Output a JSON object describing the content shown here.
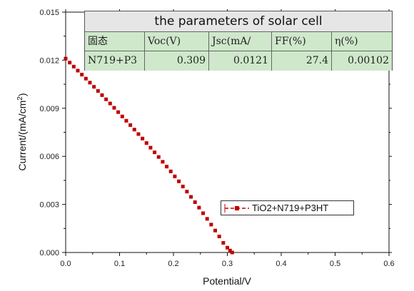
{
  "chart_data": {
    "type": "scatter",
    "xlabel": "Potential/V",
    "ylabel_parts": {
      "base": "Current/(mA/cm",
      "sup": "2",
      "end": ")"
    },
    "xlim": [
      0.0,
      0.6
    ],
    "ylim": [
      0.0,
      0.015
    ],
    "xticks": [
      "0.0",
      "0.1",
      "0.2",
      "0.3",
      "0.4",
      "0.5",
      "0.6"
    ],
    "yticks": [
      "0.000",
      "0.003",
      "0.006",
      "0.009",
      "0.012",
      "0.015"
    ],
    "series": [
      {
        "name": "TiO2+N719+P3HT",
        "color": "#c00000",
        "x": [
          0.0,
          0.0075,
          0.015,
          0.0225,
          0.03,
          0.0375,
          0.045,
          0.0525,
          0.06,
          0.0675,
          0.075,
          0.0825,
          0.09,
          0.0975,
          0.105,
          0.1125,
          0.12,
          0.1275,
          0.135,
          0.1425,
          0.15,
          0.1575,
          0.165,
          0.1725,
          0.18,
          0.1875,
          0.195,
          0.2025,
          0.21,
          0.2175,
          0.225,
          0.2325,
          0.24,
          0.2475,
          0.255,
          0.2625,
          0.27,
          0.2775,
          0.285,
          0.2925,
          0.3,
          0.305,
          0.309
        ],
        "y": [
          0.0121,
          0.01185,
          0.0116,
          0.01135,
          0.0111,
          0.01085,
          0.0106,
          0.01034,
          0.01008,
          0.00982,
          0.00956,
          0.0093,
          0.00903,
          0.00876,
          0.00849,
          0.00822,
          0.00795,
          0.00767,
          0.00739,
          0.00711,
          0.00683,
          0.00654,
          0.00625,
          0.00596,
          0.00566,
          0.00536,
          0.00506,
          0.00475,
          0.00444,
          0.00412,
          0.0038,
          0.00347,
          0.00314,
          0.0028,
          0.00245,
          0.0021,
          0.00174,
          0.00137,
          0.001,
          0.0006,
          0.0003,
          0.00012,
          0.0
        ]
      }
    ]
  },
  "parameters_table": {
    "title": "the parameters of solar cell",
    "headers": [
      "固态",
      "Voc(V)",
      "Jsc(mA/",
      "FF(%)",
      "η(%)"
    ],
    "rows": [
      [
        "N719+P3",
        "0.309",
        "0.0121",
        "27.4",
        "0.00102"
      ]
    ]
  },
  "legend": {
    "label": "TiO2+N719+P3HT"
  }
}
